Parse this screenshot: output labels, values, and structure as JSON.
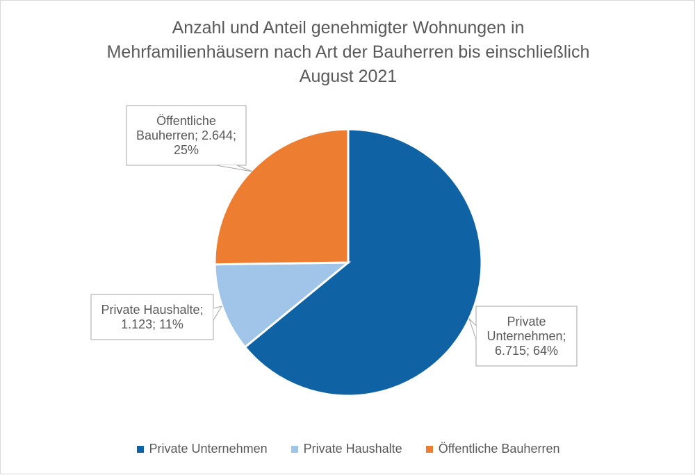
{
  "chart_data": {
    "type": "pie",
    "title_lines": [
      "Anzahl und Anteil genehmigter Wohnungen in",
      "Mehrfamilienhäusern nach Art der Bauherren bis einschließlich",
      "August 2021"
    ],
    "slices": [
      {
        "name": "Private Unternehmen",
        "value": 6715,
        "percent": 64,
        "color": "#0f62a3",
        "label_lines": [
          "Private",
          "Unternehmen;",
          "6.715; 64%"
        ]
      },
      {
        "name": "Private Haushalte",
        "value": 1123,
        "percent": 11,
        "color": "#a0c5e8",
        "label_lines": [
          "Private Haushalte;",
          "1.123; 11%"
        ]
      },
      {
        "name": "Öffentliche Bauherren",
        "value": 2644,
        "percent": 25,
        "color": "#ed7d31",
        "label_lines": [
          "Öffentliche",
          "Bauherren; 2.644;",
          "25%"
        ]
      }
    ],
    "legend": {
      "position": "bottom",
      "items": [
        "Private Unternehmen",
        "Private Haushalte",
        "Öffentliche Bauherren"
      ]
    }
  }
}
